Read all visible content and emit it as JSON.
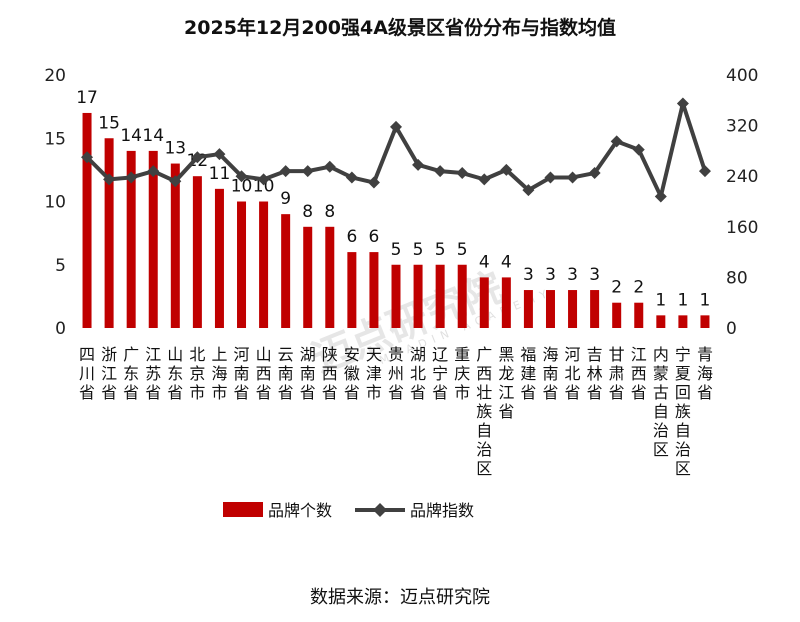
{
  "chart_data": {
    "type": "bar",
    "title": "2025年12月200强4A级景区省份分布与指数均值",
    "categories": [
      "四川省",
      "浙江省",
      "广东省",
      "江苏省",
      "山东省",
      "北京市",
      "上海市",
      "河南省",
      "山西省",
      "云南省",
      "湖南省",
      "陕西省",
      "安徽省",
      "天津市",
      "贵州省",
      "湖北省",
      "辽宁省",
      "重庆市",
      "广西壮族自治区",
      "黑龙江省",
      "福建省",
      "海南省",
      "河北省",
      "吉林省",
      "甘肃省",
      "江西省",
      "内蒙古自治区",
      "宁夏回族自治区",
      "青海省"
    ],
    "series": [
      {
        "name": "品牌个数",
        "type": "bar",
        "axis": "left",
        "color": "#c00000",
        "values": [
          17,
          15,
          14,
          14,
          13,
          12,
          11,
          10,
          10,
          9,
          8,
          8,
          6,
          6,
          5,
          5,
          5,
          5,
          4,
          4,
          3,
          3,
          3,
          3,
          2,
          2,
          1,
          1,
          1
        ]
      },
      {
        "name": "品牌指数",
        "type": "line",
        "axis": "right",
        "color": "#404040",
        "values": [
          270,
          235,
          238,
          248,
          232,
          270,
          275,
          240,
          235,
          248,
          248,
          255,
          238,
          230,
          318,
          258,
          248,
          245,
          235,
          250,
          218,
          238,
          238,
          245,
          295,
          282,
          208,
          355,
          248
        ]
      }
    ],
    "y_left": {
      "ylim": [
        0,
        20
      ],
      "ticks": [
        0,
        5,
        10,
        15,
        20
      ]
    },
    "y_right": {
      "ylim": [
        0,
        400
      ],
      "ticks": [
        0,
        80,
        160,
        240,
        320,
        400
      ]
    },
    "bar_labels": [
      "17",
      "15",
      "14",
      "14",
      "13",
      "12",
      "11",
      "10",
      "10",
      "9",
      "8",
      "8",
      "6",
      "6",
      "5",
      "5",
      "5",
      "5",
      "4",
      "4",
      "3",
      "3",
      "3",
      "3",
      "2",
      "2",
      "1",
      "1",
      "1"
    ],
    "legend_position": "bottom",
    "grid": false
  },
  "source_text": "数据来源：迈点研究院",
  "watermark": {
    "text": "迈点研究院",
    "sub": "MEADIN ACADEMY"
  },
  "colors": {
    "bar": "#c00000",
    "line": "#404040"
  }
}
